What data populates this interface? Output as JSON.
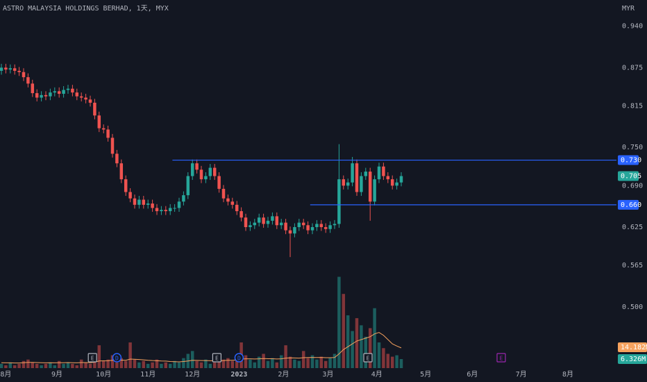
{
  "chart_data": {
    "type": "candlestick",
    "title": "ASTRO MALAYSIA HOLDINGS BERHAD, 1天, MYX",
    "currency": "MYR",
    "up_color": "#26a69a",
    "down_color": "#ef5350",
    "ma_color": "#f7a25e",
    "x": [
      0,
      2,
      4,
      6,
      8,
      10,
      12,
      14,
      16,
      18,
      20,
      22,
      24,
      26,
      28,
      30,
      32,
      34,
      36,
      38,
      40,
      42,
      44,
      46,
      48,
      50,
      52,
      54,
      56,
      58,
      60,
      62,
      64,
      66,
      68,
      70,
      72,
      74,
      76,
      78,
      80,
      82,
      84,
      86,
      88,
      90,
      92,
      94,
      96,
      98,
      100,
      102,
      104,
      106,
      108,
      110,
      112,
      114,
      116,
      118,
      120,
      122,
      124,
      126,
      128,
      130,
      132,
      134,
      136,
      138,
      140,
      142,
      144,
      146,
      148,
      150,
      152,
      154,
      156,
      158,
      160,
      162,
      164,
      166,
      168,
      170,
      172,
      174,
      176,
      178,
      180
    ],
    "open": [
      0.87,
      0.875,
      0.872,
      0.874,
      0.87,
      0.868,
      0.86,
      0.85,
      0.835,
      0.828,
      0.832,
      0.83,
      0.836,
      0.838,
      0.834,
      0.84,
      0.842,
      0.836,
      0.83,
      0.828,
      0.825,
      0.82,
      0.8,
      0.78,
      0.778,
      0.765,
      0.74,
      0.725,
      0.7,
      0.68,
      0.67,
      0.66,
      0.668,
      0.66,
      0.662,
      0.655,
      0.65,
      0.652,
      0.65,
      0.655,
      0.655,
      0.665,
      0.675,
      0.705,
      0.725,
      0.715,
      0.7,
      0.705,
      0.718,
      0.705,
      0.685,
      0.67,
      0.665,
      0.66,
      0.65,
      0.64,
      0.625,
      0.628,
      0.632,
      0.64,
      0.63,
      0.635,
      0.642,
      0.628,
      0.632,
      0.62,
      0.615,
      0.625,
      0.632,
      0.628,
      0.62,
      0.625,
      0.63,
      0.625,
      0.622,
      0.628,
      0.63,
      0.7,
      0.69,
      0.695,
      0.725,
      0.68,
      0.705,
      0.712,
      0.665,
      0.7,
      0.72,
      0.705,
      0.7,
      0.69,
      0.695
    ],
    "high": [
      0.881,
      0.881,
      0.88,
      0.88,
      0.876,
      0.874,
      0.866,
      0.856,
      0.841,
      0.838,
      0.838,
      0.842,
      0.844,
      0.844,
      0.846,
      0.848,
      0.848,
      0.842,
      0.836,
      0.834,
      0.831,
      0.826,
      0.806,
      0.786,
      0.784,
      0.771,
      0.746,
      0.731,
      0.706,
      0.686,
      0.676,
      0.674,
      0.674,
      0.668,
      0.668,
      0.661,
      0.658,
      0.658,
      0.661,
      0.661,
      0.671,
      0.681,
      0.711,
      0.731,
      0.731,
      0.721,
      0.711,
      0.724,
      0.724,
      0.711,
      0.691,
      0.676,
      0.671,
      0.666,
      0.656,
      0.646,
      0.634,
      0.638,
      0.646,
      0.646,
      0.641,
      0.648,
      0.648,
      0.638,
      0.638,
      0.626,
      0.631,
      0.638,
      0.638,
      0.634,
      0.631,
      0.636,
      0.636,
      0.631,
      0.634,
      0.636,
      0.755,
      0.706,
      0.701,
      0.735,
      0.731,
      0.711,
      0.718,
      0.718,
      0.706,
      0.726,
      0.726,
      0.711,
      0.706,
      0.701,
      0.711
    ],
    "low": [
      0.864,
      0.866,
      0.866,
      0.864,
      0.862,
      0.854,
      0.844,
      0.829,
      0.822,
      0.822,
      0.824,
      0.824,
      0.83,
      0.828,
      0.828,
      0.834,
      0.83,
      0.824,
      0.822,
      0.819,
      0.814,
      0.794,
      0.774,
      0.772,
      0.759,
      0.734,
      0.719,
      0.694,
      0.674,
      0.664,
      0.654,
      0.654,
      0.654,
      0.654,
      0.649,
      0.644,
      0.644,
      0.644,
      0.644,
      0.649,
      0.649,
      0.659,
      0.669,
      0.699,
      0.709,
      0.694,
      0.694,
      0.699,
      0.699,
      0.679,
      0.664,
      0.659,
      0.654,
      0.644,
      0.634,
      0.619,
      0.619,
      0.622,
      0.626,
      0.624,
      0.624,
      0.629,
      0.622,
      0.622,
      0.614,
      0.578,
      0.609,
      0.619,
      0.622,
      0.614,
      0.614,
      0.619,
      0.619,
      0.616,
      0.616,
      0.622,
      0.624,
      0.684,
      0.684,
      0.689,
      0.674,
      0.674,
      0.699,
      0.635,
      0.659,
      0.694,
      0.699,
      0.694,
      0.684,
      0.684,
      0.689
    ],
    "close": [
      0.875,
      0.872,
      0.874,
      0.87,
      0.868,
      0.86,
      0.85,
      0.835,
      0.828,
      0.832,
      0.83,
      0.836,
      0.838,
      0.834,
      0.84,
      0.842,
      0.836,
      0.83,
      0.828,
      0.825,
      0.82,
      0.8,
      0.78,
      0.778,
      0.765,
      0.74,
      0.725,
      0.7,
      0.68,
      0.67,
      0.66,
      0.668,
      0.66,
      0.662,
      0.655,
      0.65,
      0.652,
      0.65,
      0.655,
      0.655,
      0.665,
      0.675,
      0.705,
      0.725,
      0.715,
      0.7,
      0.705,
      0.718,
      0.705,
      0.685,
      0.67,
      0.665,
      0.66,
      0.65,
      0.64,
      0.625,
      0.628,
      0.632,
      0.64,
      0.63,
      0.635,
      0.642,
      0.628,
      0.632,
      0.62,
      0.615,
      0.625,
      0.632,
      0.628,
      0.62,
      0.625,
      0.63,
      0.625,
      0.622,
      0.628,
      0.63,
      0.7,
      0.69,
      0.695,
      0.725,
      0.68,
      0.705,
      0.712,
      0.665,
      0.7,
      0.72,
      0.705,
      0.7,
      0.69,
      0.695,
      0.705
    ],
    "volume": [
      3,
      2,
      4,
      2,
      3,
      5,
      6,
      4,
      3,
      2,
      3,
      4,
      2,
      5,
      3,
      4,
      3,
      2,
      6,
      4,
      3,
      8,
      16,
      5,
      6,
      9,
      4,
      7,
      5,
      18,
      6,
      4,
      5,
      3,
      4,
      6,
      3,
      4,
      3,
      5,
      4,
      7,
      10,
      12,
      5,
      4,
      6,
      3,
      4,
      5,
      6,
      7,
      5,
      8,
      18,
      9,
      6,
      4,
      8,
      10,
      5,
      7,
      4,
      9,
      16,
      8,
      6,
      5,
      12,
      7,
      9,
      6,
      8,
      5,
      7,
      10,
      64,
      52,
      37,
      26,
      35,
      30,
      22,
      28,
      42,
      18,
      14,
      10,
      8,
      9,
      6.326
    ],
    "volume_ma": [
      3.8,
      3.7,
      3.7,
      3.6,
      3.6,
      3.8,
      4,
      4,
      3.9,
      3.8,
      3.7,
      3.8,
      3.7,
      3.8,
      3.8,
      3.9,
      3.8,
      3.7,
      3.9,
      3.9,
      3.8,
      4.2,
      5,
      5.1,
      5.2,
      5.5,
      5.4,
      5.6,
      5.5,
      6.3,
      6.2,
      6,
      5.8,
      5.5,
      5.3,
      5.2,
      5,
      4.9,
      4.6,
      4.5,
      4.4,
      4.6,
      5,
      5.5,
      5.4,
      5.3,
      5.3,
      5.2,
      5.1,
      5.2,
      5.3,
      5.5,
      5.5,
      5.7,
      6.3,
      6.5,
      6.5,
      6.4,
      6.5,
      6.7,
      6.6,
      6.6,
      6.4,
      6.5,
      7,
      7.2,
      7.1,
      7,
      7.3,
      7.4,
      7.5,
      7.4,
      7.5,
      7.3,
      7.3,
      7.4,
      10,
      13,
      15,
      17,
      19,
      20,
      21,
      22,
      24,
      25,
      23,
      20,
      17,
      15.5,
      14.182
    ],
    "xlim": [
      -0.625,
      276.875
    ],
    "ylim": [
      0.404,
      0.981
    ],
    "volume_lim": [
      0,
      258
    ],
    "yticks": [
      {
        "value": 0.94,
        "label": "0.940"
      },
      0.875,
      0.815,
      {
        "value": 0.75,
        "label": "0.750"
      },
      {
        "value": 0.69,
        "label": "0.690"
      },
      0.625,
      0.565,
      {
        "value": 0.5,
        "label": "0.500"
      }
    ],
    "xticks": [
      {
        "value": 2,
        "label": "8月"
      },
      {
        "value": 25,
        "label": "9月"
      },
      {
        "value": 46,
        "label": "10月"
      },
      {
        "value": 66,
        "label": "11月"
      },
      {
        "value": 86,
        "label": "12月"
      },
      {
        "value": 107,
        "label": "2023"
      },
      {
        "value": 127,
        "label": "2月"
      },
      {
        "value": 147,
        "label": "3月"
      },
      {
        "value": 169,
        "label": "4月"
      },
      {
        "value": 191,
        "label": "5月"
      },
      {
        "value": 212,
        "label": "6月"
      },
      {
        "value": 234,
        "label": "7月"
      },
      {
        "value": 255,
        "label": "8月"
      }
    ],
    "hlines": [
      {
        "value": 0.73,
        "label": "0.730",
        "from": 77,
        "color": "#2962ff"
      },
      {
        "value": 0.66,
        "label": "0.660",
        "from": 139,
        "color": "#2962ff"
      }
    ],
    "price_label": {
      "value": 0.705,
      "label": "0.705"
    },
    "volume_ma_label": {
      "value": 14.182,
      "label": "14.182M"
    },
    "volume_label": {
      "value": 6.326,
      "label": "6.326M"
    },
    "events": [
      {
        "label": "E",
        "x": 41,
        "color": "#b2b5be"
      },
      {
        "label": "D",
        "x": 52,
        "color": "#2962ff"
      },
      {
        "label": "E",
        "x": 97,
        "color": "#b2b5be"
      },
      {
        "label": "D",
        "x": 107,
        "color": "#2962ff"
      },
      {
        "label": "E",
        "x": 165,
        "color": "#b2b5be"
      },
      {
        "label": "E",
        "x": 225,
        "color": "#9c27b0"
      }
    ]
  }
}
